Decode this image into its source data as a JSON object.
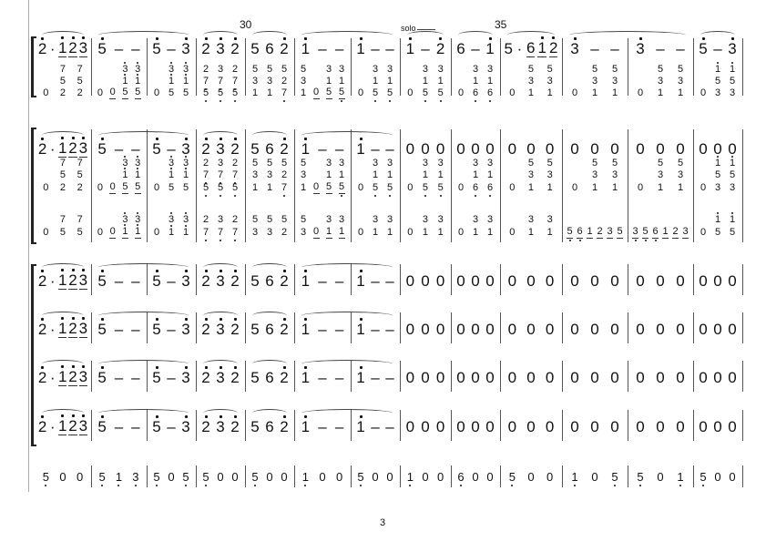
{
  "page_number": "3",
  "measure_numbers": [
    {
      "label": "30",
      "measure": 5
    },
    {
      "label": "35",
      "measure": 10
    }
  ],
  "solo_label": "solo",
  "systems": [
    {
      "slurs": [
        [
          1,
          1
        ],
        [
          2,
          3
        ],
        [
          4,
          4
        ],
        [
          5,
          5
        ],
        [
          6,
          7
        ],
        [
          8,
          8
        ],
        [
          9,
          9
        ],
        [
          10,
          10
        ],
        [
          11,
          12
        ],
        [
          13,
          13
        ]
      ],
      "rows": [
        {
          "style": "big",
          "measures": [
            [
              "2'",
              "·",
              "_1'",
              "_2'",
              "_3'"
            ],
            [
              "5'",
              "–",
              "–"
            ],
            [
              "5'",
              "–",
              "3'"
            ],
            [
              "2'",
              "3'",
              "2'"
            ],
            [
              "5",
              "6",
              "2'"
            ],
            [
              "1'",
              "–",
              "–"
            ],
            [
              "1'",
              "–",
              "–"
            ],
            [
              "1'",
              "–",
              "2'"
            ],
            [
              "6",
              "–",
              "1'"
            ],
            [
              "5",
              "·",
              "_6",
              "_1'",
              "_2'"
            ],
            [
              "3'",
              "–",
              "–"
            ],
            [
              "3'",
              "–",
              "–"
            ],
            [
              "5'",
              "–",
              "3'"
            ]
          ]
        },
        {
          "style": "small",
          "measures": [
            [
              "",
              "7",
              "7"
            ],
            [
              "",
              "",
              "3'",
              "3'"
            ],
            [
              "",
              "3'",
              "3'"
            ],
            [
              "2",
              "3",
              "2"
            ],
            [
              "5",
              "5",
              "5"
            ],
            [
              "5",
              "",
              "3",
              "3"
            ],
            [
              "",
              "3",
              "3"
            ],
            [
              "",
              "3",
              "3"
            ],
            [
              "",
              "3",
              "3"
            ],
            [
              "",
              "5",
              "5"
            ],
            [
              "",
              "5",
              "5"
            ],
            [
              "",
              "5",
              "5"
            ],
            [
              "",
              "1'",
              "1'"
            ]
          ]
        },
        {
          "style": "small",
          "measures": [
            [
              "",
              "5",
              "5"
            ],
            [
              "",
              "",
              "1'",
              "1'"
            ],
            [
              "",
              "1'",
              "1'"
            ],
            [
              "7,",
              "7,",
              "7,"
            ],
            [
              "3",
              "3",
              "2"
            ],
            [
              "3",
              "",
              "1",
              "1"
            ],
            [
              "",
              "1",
              "1"
            ],
            [
              "",
              "1",
              "1"
            ],
            [
              "",
              "1",
              "1"
            ],
            [
              "",
              "3",
              "3"
            ],
            [
              "",
              "3",
              "3"
            ],
            [
              "",
              "3",
              "3"
            ],
            [
              "",
              "5",
              "5"
            ]
          ]
        },
        {
          "style": "small",
          "measures": [
            [
              "0",
              "2",
              "2"
            ],
            [
              "0",
              "_0",
              "_5",
              "_5"
            ],
            [
              "0",
              "5",
              "5"
            ],
            [
              "5,",
              "5,",
              "5,"
            ],
            [
              "1",
              "1",
              "7,"
            ],
            [
              "1",
              "_0",
              "_5",
              "_5,"
            ],
            [
              "0",
              "5,",
              "5,"
            ],
            [
              "0",
              "5,",
              "5,"
            ],
            [
              "0",
              "6,",
              "6,"
            ],
            [
              "0",
              "1",
              "1"
            ],
            [
              "0",
              "1",
              "1"
            ],
            [
              "0",
              "1",
              "1"
            ],
            [
              "0",
              "3",
              "3"
            ]
          ]
        }
      ]
    },
    {
      "slurs": [
        [
          1,
          1
        ],
        [
          2,
          3
        ],
        [
          4,
          4
        ],
        [
          5,
          5
        ],
        [
          6,
          7
        ]
      ],
      "rows": [
        {
          "style": "big",
          "measures": [
            [
              "2'",
              "·",
              "_1'",
              "_2'",
              "_3'"
            ],
            [
              "5'",
              "–",
              "–"
            ],
            [
              "5'",
              "–",
              "3'"
            ],
            [
              "2'",
              "3'",
              "2'"
            ],
            [
              "5",
              "6",
              "2'"
            ],
            [
              "1'",
              "–",
              "–"
            ],
            [
              "1'",
              "–",
              "–"
            ],
            [
              "0",
              "0",
              "0"
            ],
            [
              "0",
              "0",
              "0"
            ],
            [
              "0",
              "0",
              "0"
            ],
            [
              "0",
              "0",
              "0"
            ],
            [
              "0",
              "0",
              "0"
            ],
            [
              "0",
              "0",
              "0"
            ]
          ]
        },
        {
          "style": "small",
          "measures": [
            [
              "",
              "7",
              "7"
            ],
            [
              "",
              "",
              "3'",
              "3'"
            ],
            [
              "",
              "3'",
              "3'"
            ],
            [
              "2",
              "3",
              "2"
            ],
            [
              "5",
              "5",
              "5"
            ],
            [
              "5",
              "",
              "3",
              "3"
            ],
            [
              "",
              "3",
              "3"
            ],
            [
              "",
              "3",
              "3"
            ],
            [
              "",
              "3",
              "3"
            ],
            [
              "",
              "5",
              "5"
            ],
            [
              "",
              "5",
              "5"
            ],
            [
              "",
              "5",
              "5"
            ],
            [
              "",
              "1'",
              "1'"
            ]
          ]
        },
        {
          "style": "small",
          "measures": [
            [
              "",
              "5",
              "5"
            ],
            [
              "",
              "",
              "1'",
              "1'"
            ],
            [
              "",
              "1'",
              "1'"
            ],
            [
              "7,",
              "7,",
              "7,"
            ],
            [
              "3",
              "3",
              "2"
            ],
            [
              "3",
              "",
              "1",
              "1"
            ],
            [
              "",
              "1",
              "1"
            ],
            [
              "",
              "1",
              "1"
            ],
            [
              "",
              "1",
              "1"
            ],
            [
              "",
              "3",
              "3"
            ],
            [
              "",
              "3",
              "3"
            ],
            [
              "",
              "3",
              "3"
            ],
            [
              "",
              "5",
              "5"
            ]
          ]
        },
        {
          "style": "small",
          "measures": [
            [
              "0",
              "2",
              "2"
            ],
            [
              "0",
              "_0",
              "_5",
              "_5"
            ],
            [
              "0",
              "5",
              "5"
            ],
            [
              "5,",
              "5,",
              "5,"
            ],
            [
              "1",
              "1",
              "7,"
            ],
            [
              "1",
              "_0",
              "_5",
              "_5,"
            ],
            [
              "0",
              "5,",
              "5,"
            ],
            [
              "0",
              "5,",
              "5,"
            ],
            [
              "0",
              "6,",
              "6,"
            ],
            [
              "0",
              "1",
              "1"
            ],
            [
              "0",
              "1",
              "1"
            ],
            [
              "0",
              "1",
              "1"
            ],
            [
              "0",
              "3",
              "3"
            ]
          ]
        },
        {
          "style": "small",
          "measures": [
            [
              "",
              "7",
              "7"
            ],
            [
              "",
              "",
              "3'",
              "3'"
            ],
            [
              "",
              "3'",
              "3'"
            ],
            [
              "2",
              "3",
              "2"
            ],
            [
              "5",
              "5",
              "5"
            ],
            [
              "5",
              "",
              "3",
              "3"
            ],
            [
              "",
              "3",
              "3"
            ],
            [
              "",
              "3",
              "3"
            ],
            [
              "",
              "3",
              "3"
            ],
            [
              "",
              "3",
              "3"
            ],
            [],
            [],
            [
              "",
              "1'",
              "1'"
            ]
          ]
        },
        {
          "style": "small",
          "measures": [
            [
              "0",
              "5",
              "5"
            ],
            [
              "0",
              "_0",
              "_1'",
              "_1'"
            ],
            [
              "0",
              "1'",
              "1'"
            ],
            [
              "7,",
              "7,",
              "7,"
            ],
            [
              "3",
              "3",
              "2"
            ],
            [
              "3",
              "_0",
              "_1",
              "_1"
            ],
            [
              "0",
              "1",
              "1"
            ],
            [
              "0",
              "1",
              "1"
            ],
            [
              "0",
              "1",
              "1"
            ],
            [
              "0",
              "1",
              "1"
            ],
            [
              "_5,",
              "_6,",
              "_1",
              "_2",
              "_3",
              "_5"
            ],
            [
              "_3,",
              "_5,",
              "_6,",
              "_1",
              "_2",
              "_3"
            ],
            [
              "0",
              "5",
              "5"
            ]
          ]
        }
      ]
    },
    {
      "slurs": [
        [
          1,
          1
        ],
        [
          2,
          3
        ],
        [
          4,
          4
        ],
        [
          5,
          5
        ],
        [
          6,
          7
        ]
      ],
      "rows": [
        {
          "style": "big",
          "measures": [
            [
              "2'",
              "·",
              "_1'",
              "_2'",
              "_3'"
            ],
            [
              "5'",
              "–",
              "–"
            ],
            [
              "5'",
              "–",
              "3'"
            ],
            [
              "2'",
              "3'",
              "2'"
            ],
            [
              "5",
              "6",
              "2'"
            ],
            [
              "1'",
              "–",
              "–"
            ],
            [
              "1'",
              "–",
              "–"
            ],
            [
              "0",
              "0",
              "0"
            ],
            [
              "0",
              "0",
              "0"
            ],
            [
              "0",
              "0",
              "0"
            ],
            [
              "0",
              "0",
              "0"
            ],
            [
              "0",
              "0",
              "0"
            ],
            [
              "0",
              "0",
              "0"
            ]
          ]
        },
        {
          "style": "big",
          "measures": [
            [
              "2'",
              "·",
              "_1'",
              "_2'",
              "_3'"
            ],
            [
              "5'",
              "–",
              "–"
            ],
            [
              "5'",
              "–",
              "3'"
            ],
            [
              "2'",
              "3'",
              "2'"
            ],
            [
              "5",
              "6",
              "2'"
            ],
            [
              "1'",
              "–",
              "–"
            ],
            [
              "1'",
              "–",
              "–"
            ],
            [
              "0",
              "0",
              "0"
            ],
            [
              "0",
              "0",
              "0"
            ],
            [
              "0",
              "0",
              "0"
            ],
            [
              "0",
              "0",
              "0"
            ],
            [
              "0",
              "0",
              "0"
            ],
            [
              "0",
              "0",
              "0"
            ]
          ]
        },
        {
          "style": "big",
          "measures": [
            [
              "2'",
              "·",
              "_1'",
              "_2'",
              "_3'"
            ],
            [
              "5'",
              "–",
              "–"
            ],
            [
              "5'",
              "–",
              "3'"
            ],
            [
              "2'",
              "3'",
              "2'"
            ],
            [
              "5",
              "6",
              "2'"
            ],
            [
              "1'",
              "–",
              "–"
            ],
            [
              "1'",
              "–",
              "–"
            ],
            [
              "0",
              "0",
              "0"
            ],
            [
              "0",
              "0",
              "0"
            ],
            [
              "0",
              "0",
              "0"
            ],
            [
              "0",
              "0",
              "0"
            ],
            [
              "0",
              "0",
              "0"
            ],
            [
              "0",
              "0",
              "0"
            ]
          ]
        },
        {
          "style": "big",
          "measures": [
            [
              "2'",
              "·",
              "_1'",
              "_2'",
              "_3'"
            ],
            [
              "5'",
              "–",
              "–"
            ],
            [
              "5'",
              "–",
              "3'"
            ],
            [
              "2'",
              "3'",
              "2'"
            ],
            [
              "5",
              "6",
              "2'"
            ],
            [
              "1'",
              "–",
              "–"
            ],
            [
              "1'",
              "–",
              "–"
            ],
            [
              "0",
              "0",
              "0"
            ],
            [
              "0",
              "0",
              "0"
            ],
            [
              "0",
              "0",
              "0"
            ],
            [
              "0",
              "0",
              "0"
            ],
            [
              "0",
              "0",
              "0"
            ],
            [
              "0",
              "0",
              "0"
            ]
          ]
        }
      ]
    },
    {
      "slurs": [],
      "rows": [
        {
          "style": "perc",
          "measures": [
            [
              "5,",
              "0",
              "0"
            ],
            [
              "5,",
              "1,",
              "3,"
            ],
            [
              "5,",
              "0",
              "5,"
            ],
            [
              "5,",
              "0",
              "0"
            ],
            [
              "5,",
              "0",
              "0"
            ],
            [
              "1,",
              "0",
              "0"
            ],
            [
              "5,",
              "0",
              "0"
            ],
            [
              "1,",
              "0",
              "0"
            ],
            [
              "6,",
              "0",
              "0"
            ],
            [
              "5,",
              "0",
              "0"
            ],
            [
              "1,",
              "0",
              "5,"
            ],
            [
              "5,",
              "0",
              "1,"
            ],
            [
              "5,",
              "0",
              "0"
            ]
          ]
        }
      ]
    }
  ]
}
